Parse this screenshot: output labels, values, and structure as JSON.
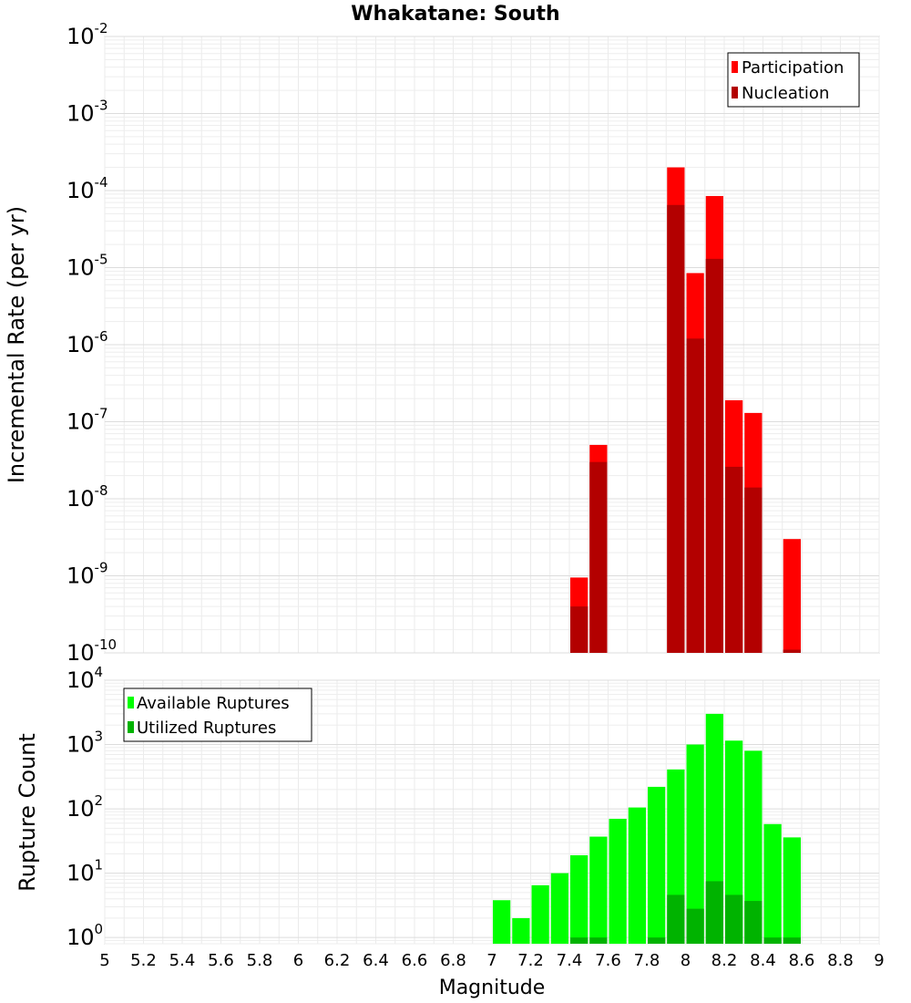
{
  "chart_data": [
    {
      "type": "bar",
      "title": "Whakatane: South",
      "ylabel": "Incremental Rate (per yr)",
      "xlabel": "",
      "xlim": [
        5,
        9
      ],
      "ylim": [
        1e-10,
        0.01
      ],
      "yscale": "log",
      "grid": true,
      "legend_placement": "top-right",
      "bar_width": 0.1,
      "series": [
        {
          "name": "Participation",
          "color": "#ff0000",
          "points": [
            {
              "x": 7.45,
              "y": 9.5e-10
            },
            {
              "x": 7.55,
              "y": 5e-08
            },
            {
              "x": 7.95,
              "y": 0.0002
            },
            {
              "x": 8.05,
              "y": 8.5e-06
            },
            {
              "x": 8.15,
              "y": 8.5e-05
            },
            {
              "x": 8.25,
              "y": 1.9e-07
            },
            {
              "x": 8.35,
              "y": 1.3e-07
            },
            {
              "x": 8.55,
              "y": 3e-09
            }
          ]
        },
        {
          "name": "Nucleation",
          "color": "#b30000",
          "points": [
            {
              "x": 7.45,
              "y": 4e-10
            },
            {
              "x": 7.55,
              "y": 3e-08
            },
            {
              "x": 7.95,
              "y": 6.5e-05
            },
            {
              "x": 8.05,
              "y": 1.2e-06
            },
            {
              "x": 8.15,
              "y": 1.3e-05
            },
            {
              "x": 8.25,
              "y": 2.6e-08
            },
            {
              "x": 8.35,
              "y": 1.4e-08
            },
            {
              "x": 8.55,
              "y": 1.1e-10
            }
          ]
        }
      ],
      "y_ticks": [
        {
          "base": "10",
          "exp": "-2",
          "value": 0.01
        },
        {
          "base": "10",
          "exp": "-3",
          "value": 0.001
        },
        {
          "base": "10",
          "exp": "-4",
          "value": 0.0001
        },
        {
          "base": "10",
          "exp": "-5",
          "value": 1e-05
        },
        {
          "base": "10",
          "exp": "-6",
          "value": 1e-06
        },
        {
          "base": "10",
          "exp": "-7",
          "value": 1e-07
        },
        {
          "base": "10",
          "exp": "-8",
          "value": 1e-08
        },
        {
          "base": "10",
          "exp": "-9",
          "value": 1e-09
        },
        {
          "base": "10",
          "exp": "-10",
          "value": 1e-10
        }
      ]
    },
    {
      "type": "bar",
      "ylabel": "Rupture Count",
      "xlabel": "Magnitude",
      "xlim": [
        5,
        9
      ],
      "ylim": [
        0.8,
        10000.0
      ],
      "yscale": "log",
      "grid": true,
      "legend_placement": "top-left",
      "bar_width": 0.1,
      "series": [
        {
          "name": "Available Ruptures",
          "color": "#00ff00",
          "points": [
            {
              "x": 7.05,
              "y": 3.8
            },
            {
              "x": 7.15,
              "y": 2.0
            },
            {
              "x": 7.25,
              "y": 6.5
            },
            {
              "x": 7.35,
              "y": 10
            },
            {
              "x": 7.45,
              "y": 19
            },
            {
              "x": 7.55,
              "y": 37
            },
            {
              "x": 7.65,
              "y": 70
            },
            {
              "x": 7.75,
              "y": 105
            },
            {
              "x": 7.85,
              "y": 220
            },
            {
              "x": 7.95,
              "y": 410
            },
            {
              "x": 8.05,
              "y": 1000
            },
            {
              "x": 8.15,
              "y": 3000
            },
            {
              "x": 8.25,
              "y": 1150
            },
            {
              "x": 8.35,
              "y": 800
            },
            {
              "x": 8.45,
              "y": 58
            },
            {
              "x": 8.55,
              "y": 36
            }
          ]
        },
        {
          "name": "Utilized Ruptures",
          "color": "#00b300",
          "points": [
            {
              "x": 7.45,
              "y": 1
            },
            {
              "x": 7.55,
              "y": 1
            },
            {
              "x": 7.85,
              "y": 1
            },
            {
              "x": 7.95,
              "y": 4.6
            },
            {
              "x": 8.05,
              "y": 2.8
            },
            {
              "x": 8.15,
              "y": 7.5
            },
            {
              "x": 8.25,
              "y": 4.6
            },
            {
              "x": 8.35,
              "y": 3.7
            },
            {
              "x": 8.45,
              "y": 1
            },
            {
              "x": 8.55,
              "y": 1
            }
          ]
        }
      ],
      "y_ticks": [
        {
          "base": "10",
          "exp": "4",
          "value": 10000.0
        },
        {
          "base": "10",
          "exp": "3",
          "value": 1000.0
        },
        {
          "base": "10",
          "exp": "2",
          "value": 100.0
        },
        {
          "base": "10",
          "exp": "1",
          "value": 10.0
        },
        {
          "base": "10",
          "exp": "0",
          "value": 1
        }
      ],
      "x_ticks": [
        "5",
        "5.2",
        "5.4",
        "5.6",
        "5.8",
        "6",
        "6.2",
        "6.4",
        "6.6",
        "6.8",
        "7",
        "7.2",
        "7.4",
        "7.6",
        "7.8",
        "8",
        "8.2",
        "8.4",
        "8.6",
        "8.8",
        "9"
      ]
    }
  ]
}
